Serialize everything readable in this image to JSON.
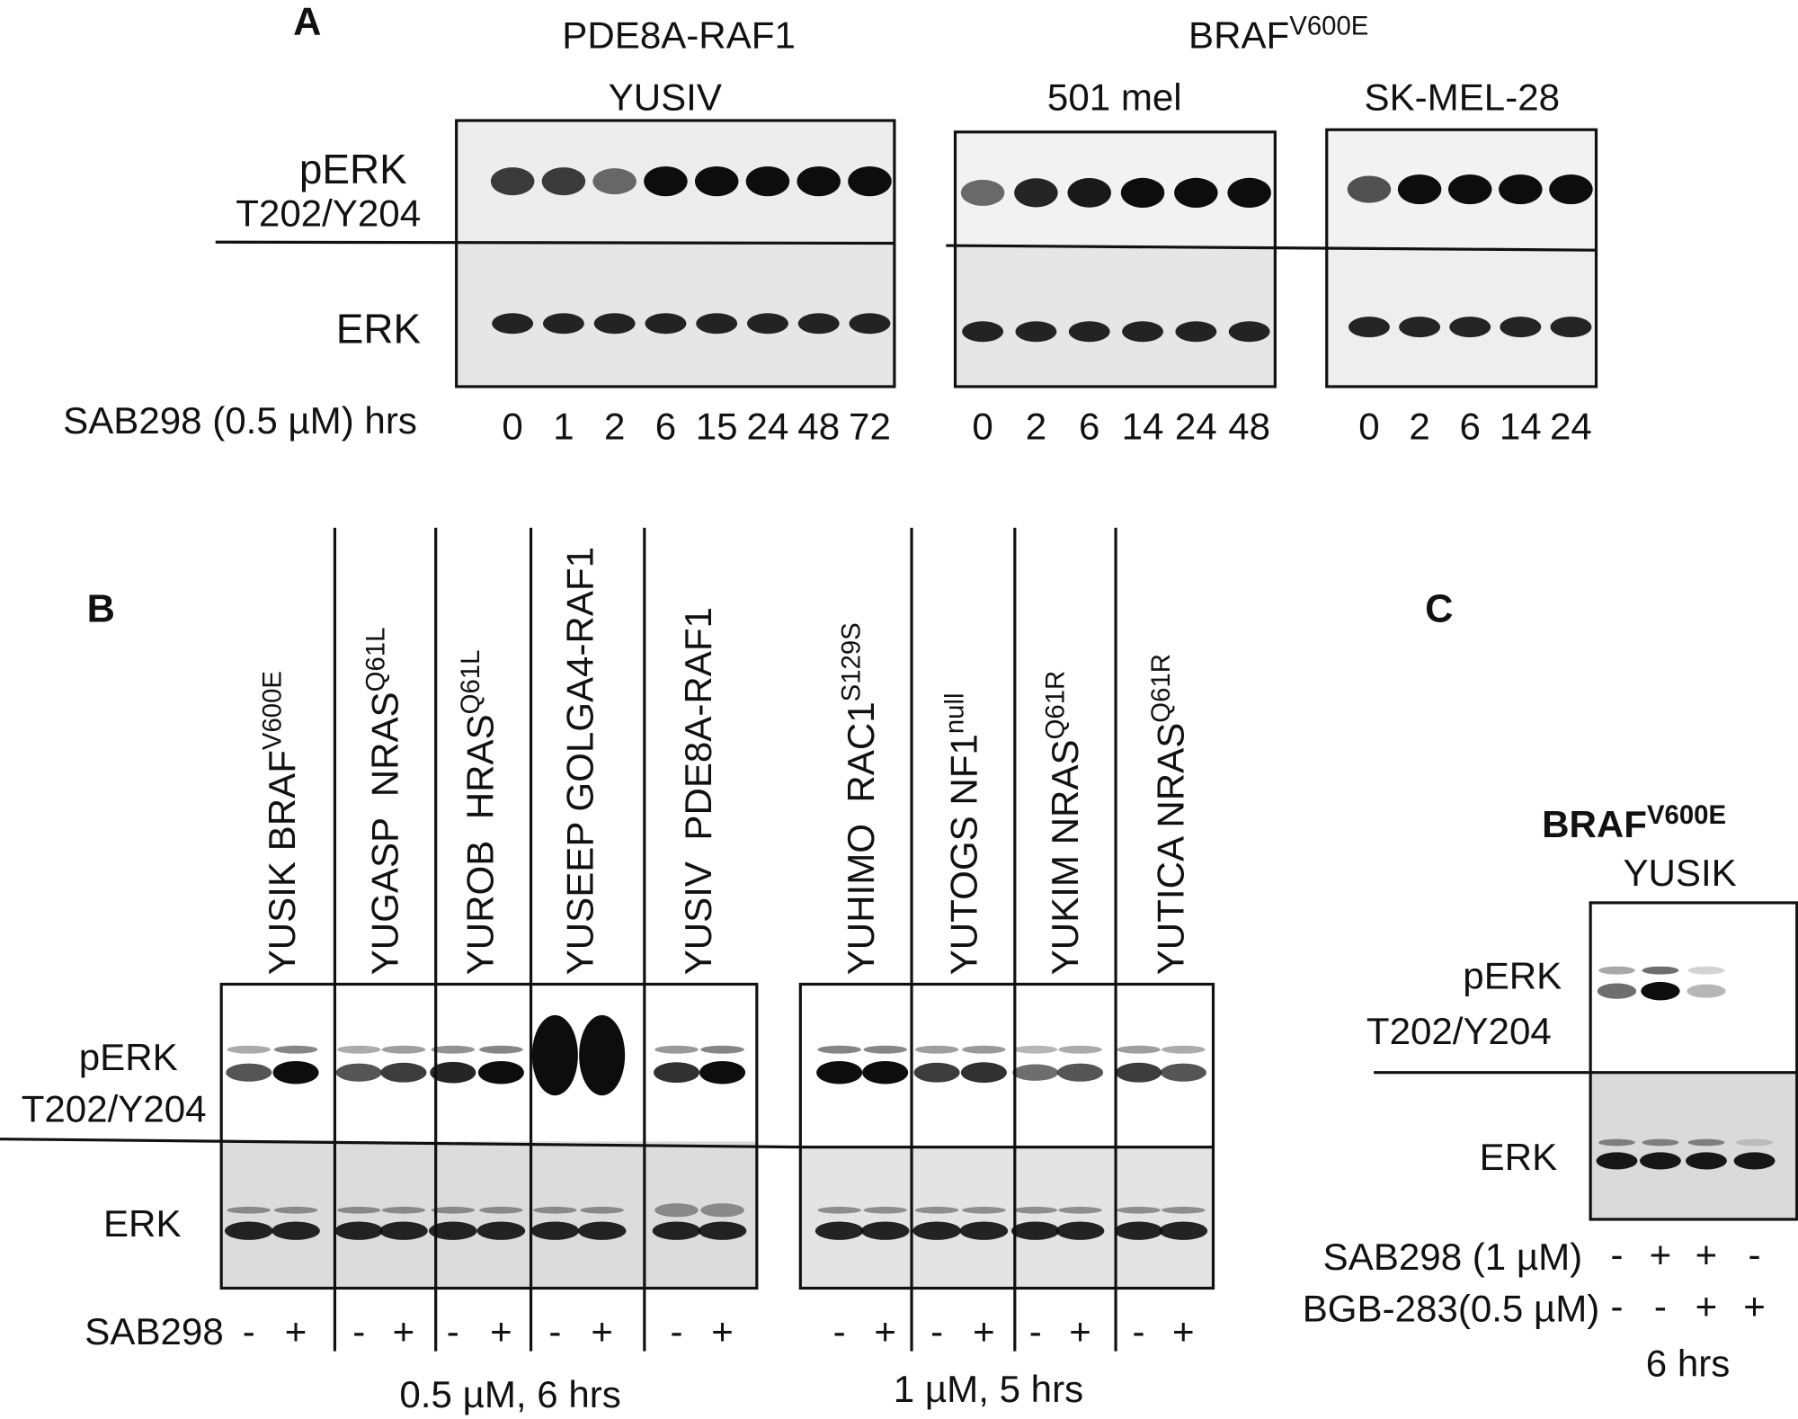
{
  "panel_a": {
    "label": "A",
    "headers": [
      {
        "text": "PDE8A-RAF1"
      },
      {
        "text": "BRAF",
        "sup": "V600E"
      }
    ],
    "blots": [
      {
        "cell_line": "YUSIV",
        "timepoints": [
          0,
          1,
          2,
          6,
          15,
          24,
          48,
          72
        ]
      },
      {
        "cell_line": "501 mel",
        "timepoints": [
          0,
          2,
          6,
          14,
          24,
          48
        ]
      },
      {
        "cell_line": "SK-MEL-28",
        "timepoints": [
          0,
          2,
          6,
          14,
          24
        ]
      }
    ],
    "row_labels": {
      "perk": "pERK",
      "site": "T202/Y204",
      "erk": "ERK"
    },
    "treatment": "SAB298 (0.5 µM) hrs"
  },
  "panel_b": {
    "label": "B",
    "lanes": [
      {
        "name": "YUSIK BRAF",
        "sup": "V600E",
        "signs": [
          "-",
          "+"
        ]
      },
      {
        "name": "YUGASP  NRAS",
        "sup": "Q61L",
        "signs": [
          "-",
          "+"
        ]
      },
      {
        "name": "YUROB  HRAS",
        "sup": "Q61L",
        "signs": [
          "-",
          "+"
        ]
      },
      {
        "name": "YUSEEP GOLGA4-RAF1",
        "signs": [
          "-",
          "+"
        ]
      },
      {
        "name": "YUSIV  PDE8A-RAF1",
        "signs": [
          "-",
          "+"
        ]
      },
      {
        "name": "YUHIMO  RAC1",
        "sup": "S129S",
        "signs": [
          "-",
          "+"
        ]
      },
      {
        "name": "YUTOGS NF1",
        "sup": "null",
        "signs": [
          "-",
          "+"
        ]
      },
      {
        "name": "YUKIM NRAS",
        "sup": "Q61R",
        "signs": [
          "-",
          "+"
        ]
      },
      {
        "name": "YUTICA NRAS",
        "sup": "Q61R",
        "signs": [
          "-",
          "+"
        ]
      }
    ],
    "row_labels": {
      "perk": "pERK",
      "site": "T202/Y204",
      "erk": "ERK"
    },
    "treatment": "SAB298",
    "conditions": [
      "0.5 µM, 6 hrs",
      "1 µM, 5 hrs"
    ]
  },
  "panel_c": {
    "label": "C",
    "header": {
      "text": "BRAF",
      "sup": "V600E"
    },
    "cell_line": "YUSIK",
    "row_labels": {
      "perk": "pERK",
      "site": "T202/Y204",
      "erk": "ERK"
    },
    "treatments": [
      {
        "name": "SAB298 (1 µM)",
        "signs": [
          "-",
          "+",
          "+",
          "-"
        ]
      },
      {
        "name": "BGB-283(0.5 µM)",
        "signs": [
          "-",
          "-",
          "+",
          "+"
        ]
      }
    ],
    "duration": "6 hrs"
  }
}
